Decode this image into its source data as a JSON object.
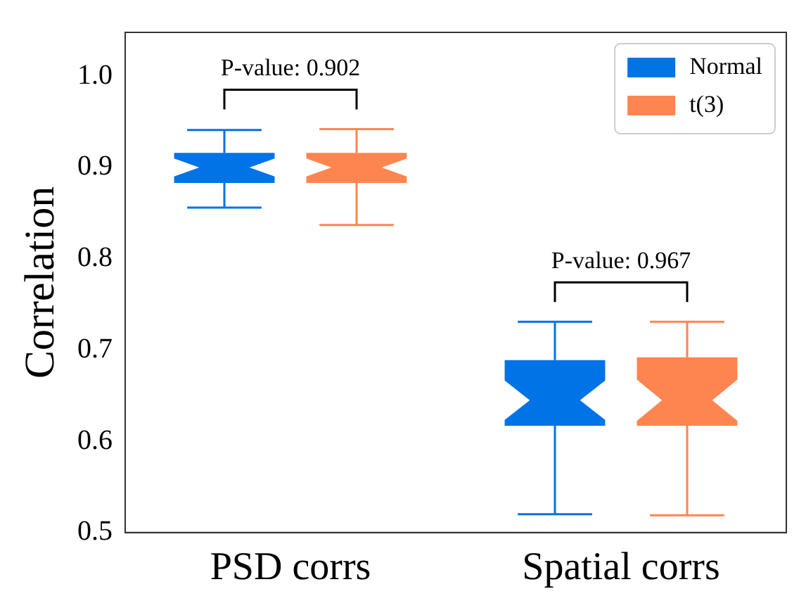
{
  "chart_data": {
    "type": "box",
    "ylabel": "Correlation",
    "categories": [
      "PSD corrs",
      "Spatial corrs"
    ],
    "series": [
      {
        "name": "Normal",
        "color": "#0073e6",
        "boxes": [
          {
            "low": 0.856,
            "q1": 0.883,
            "median": 0.9,
            "q3": 0.916,
            "high": 0.941
          },
          {
            "low": 0.52,
            "q1": 0.617,
            "median": 0.645,
            "q3": 0.689,
            "high": 0.731
          }
        ]
      },
      {
        "name": "t(3)",
        "color": "#ff8550",
        "boxes": [
          {
            "low": 0.837,
            "q1": 0.883,
            "median": 0.9,
            "q3": 0.916,
            "high": 0.942
          },
          {
            "low": 0.519,
            "q1": 0.617,
            "median": 0.645,
            "q3": 0.692,
            "high": 0.731
          }
        ]
      }
    ],
    "ylim": [
      0.5,
      1.048
    ],
    "yticks": [
      0.5,
      0.6,
      0.7,
      0.8,
      0.9,
      {
        "value": 1,
        "label": "1.0"
      }
    ],
    "annotations": [
      "P-value: 0.902",
      "P-value: 0.967"
    ],
    "grid": false,
    "legend": "top right"
  }
}
